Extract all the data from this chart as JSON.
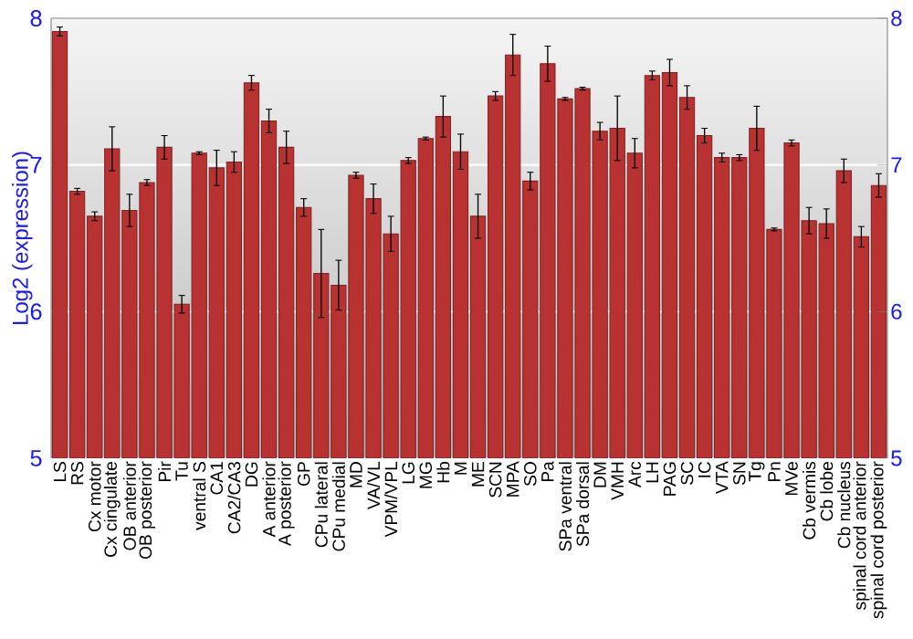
{
  "chart_data": {
    "type": "bar",
    "ylabel": "Log2 (expression)",
    "categories": [
      "LS",
      "RS",
      "Cx motor",
      "Cx cingulate",
      "OB anterior",
      "OB posterior",
      "Pir",
      "Tu",
      "ventral S",
      "CA1",
      "CA2/CA3",
      "DG",
      "A anterior",
      "A posterior",
      "GP",
      "CPu lateral",
      "CPu medial",
      "MD",
      "VA/VL",
      "VPM/VPL",
      "LG",
      "MG",
      "Hb",
      "M",
      "ME",
      "SCN",
      "MPA",
      "SO",
      "Pa",
      "SPa ventral",
      "SPa dorsal",
      "DM",
      "VMH",
      "Arc",
      "LH",
      "PAG",
      "SC",
      "IC",
      "VTA",
      "SN",
      "Tg",
      "Pn",
      "MVe",
      "Cb vermis",
      "Cb lobe",
      "Cb nucleus",
      "spinal cord anterior",
      "spinal cord posterior"
    ],
    "values": [
      7.91,
      6.82,
      6.65,
      7.11,
      6.69,
      6.88,
      7.12,
      6.05,
      7.08,
      6.98,
      7.02,
      7.56,
      7.3,
      7.12,
      6.71,
      6.26,
      6.18,
      6.93,
      6.77,
      6.53,
      7.03,
      7.18,
      7.33,
      7.09,
      6.65,
      7.47,
      7.75,
      6.89,
      7.69,
      7.45,
      7.52,
      7.23,
      7.25,
      7.08,
      7.61,
      7.63,
      7.46,
      7.2,
      7.05,
      7.05,
      7.25,
      6.56,
      7.15,
      6.62,
      6.6,
      6.96,
      6.51,
      6.86
    ],
    "errors": [
      0.03,
      0.02,
      0.03,
      0.15,
      0.11,
      0.02,
      0.08,
      0.06,
      0.01,
      0.12,
      0.07,
      0.05,
      0.08,
      0.11,
      0.06,
      0.3,
      0.17,
      0.02,
      0.1,
      0.12,
      0.02,
      0.01,
      0.14,
      0.12,
      0.15,
      0.03,
      0.14,
      0.06,
      0.12,
      0.01,
      0.01,
      0.06,
      0.22,
      0.1,
      0.03,
      0.09,
      0.08,
      0.05,
      0.03,
      0.02,
      0.15,
      0.01,
      0.02,
      0.09,
      0.1,
      0.08,
      0.07,
      0.08
    ],
    "color": "#b83232",
    "ylim": [
      5,
      8
    ],
    "yticks": [
      5,
      6,
      7,
      8
    ],
    "y2lim": [
      5,
      8
    ],
    "y2ticks": [
      5,
      6,
      7,
      8
    ],
    "grid": "y"
  }
}
